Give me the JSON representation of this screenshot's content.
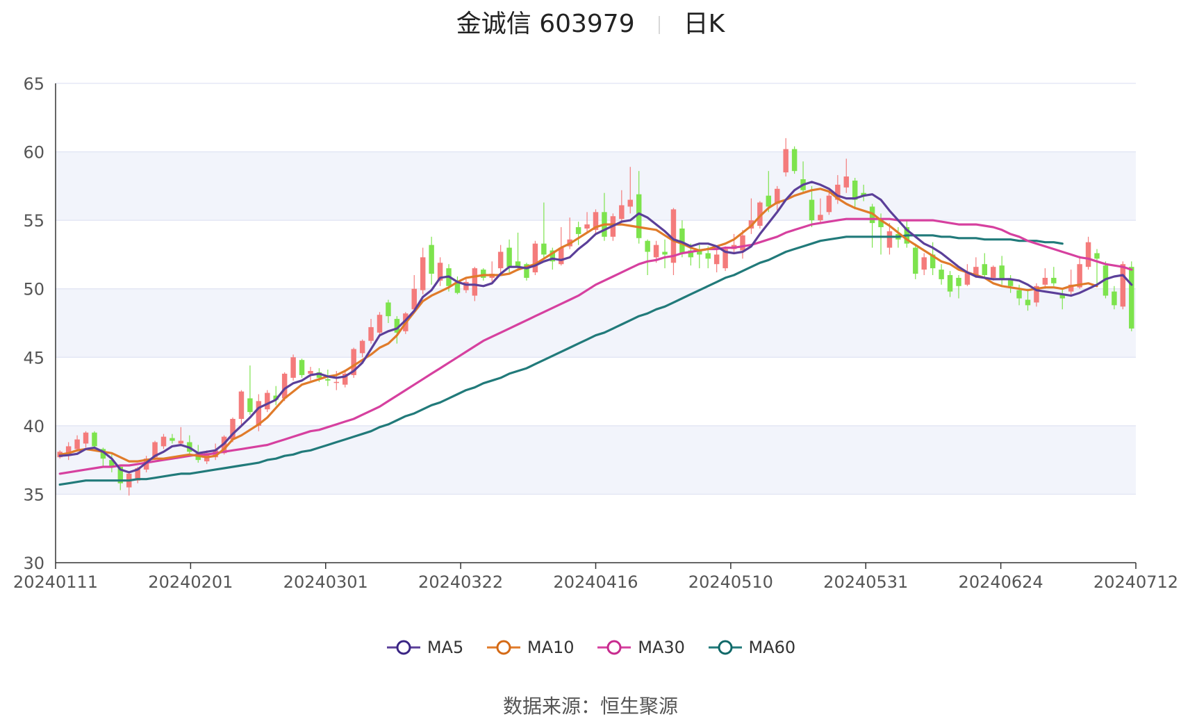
{
  "header": {
    "name": "金诚信 603979",
    "period": "日K"
  },
  "source": {
    "label": "数据来源：",
    "value": "恒生聚源"
  },
  "legend": [
    {
      "name": "MA5",
      "color": "#5b3f99"
    },
    {
      "name": "MA10",
      "color": "#e07b2a"
    },
    {
      "name": "MA30",
      "color": "#d6409f"
    },
    {
      "name": "MA60",
      "color": "#217a7a"
    }
  ],
  "colors": {
    "up": "#f47b7b",
    "down": "#7de34d",
    "band": "#f2f4fb",
    "grid": "#d9def0"
  },
  "chart_data": {
    "type": "candlestick",
    "ylim": [
      30,
      65
    ],
    "yticks": [
      30,
      35,
      40,
      45,
      50,
      55,
      60,
      65
    ],
    "xticks": [
      "20240111",
      "20240201",
      "20240301",
      "20240322",
      "20240416",
      "20240510",
      "20240531",
      "20240624",
      "20240712"
    ],
    "grid": true,
    "legend_position": "bottom",
    "candles": [
      {
        "o": 37.7,
        "c": 38.1,
        "h": 38.2,
        "l": 37.6
      },
      {
        "o": 37.8,
        "c": 38.5,
        "h": 38.8,
        "l": 37.5
      },
      {
        "o": 38.3,
        "c": 39.0,
        "h": 39.3,
        "l": 38.1
      },
      {
        "o": 38.7,
        "c": 39.5,
        "h": 39.6,
        "l": 38.4
      },
      {
        "o": 39.5,
        "c": 38.5,
        "h": 39.6,
        "l": 38.2
      },
      {
        "o": 38.3,
        "c": 37.6,
        "h": 38.4,
        "l": 37.0
      },
      {
        "o": 37.5,
        "c": 37.0,
        "h": 37.9,
        "l": 36.6
      },
      {
        "o": 37.0,
        "c": 35.8,
        "h": 37.1,
        "l": 35.3
      },
      {
        "o": 35.5,
        "c": 36.5,
        "h": 36.6,
        "l": 34.9
      },
      {
        "o": 36.0,
        "c": 36.9,
        "h": 37.0,
        "l": 35.8
      },
      {
        "o": 36.8,
        "c": 37.6,
        "h": 37.8,
        "l": 36.6
      },
      {
        "o": 37.7,
        "c": 38.8,
        "h": 38.9,
        "l": 37.5
      },
      {
        "o": 38.5,
        "c": 39.2,
        "h": 39.4,
        "l": 38.3
      },
      {
        "o": 39.1,
        "c": 38.9,
        "h": 39.4,
        "l": 38.7
      },
      {
        "o": 38.7,
        "c": 38.9,
        "h": 39.9,
        "l": 38.5
      },
      {
        "o": 38.8,
        "c": 38.1,
        "h": 39.3,
        "l": 37.9
      },
      {
        "o": 38.0,
        "c": 37.5,
        "h": 38.6,
        "l": 37.3
      },
      {
        "o": 37.4,
        "c": 38.0,
        "h": 38.2,
        "l": 37.2
      },
      {
        "o": 37.7,
        "c": 38.2,
        "h": 38.7,
        "l": 37.5
      },
      {
        "o": 38.0,
        "c": 39.2,
        "h": 39.3,
        "l": 37.9
      },
      {
        "o": 39.0,
        "c": 40.5,
        "h": 40.6,
        "l": 38.8
      },
      {
        "o": 40.5,
        "c": 42.5,
        "h": 42.6,
        "l": 40.0
      },
      {
        "o": 42.0,
        "c": 41.0,
        "h": 44.4,
        "l": 40.8
      },
      {
        "o": 40.0,
        "c": 41.8,
        "h": 42.3,
        "l": 39.6
      },
      {
        "o": 41.2,
        "c": 42.4,
        "h": 42.6,
        "l": 41.0
      },
      {
        "o": 42.2,
        "c": 41.9,
        "h": 42.9,
        "l": 41.5
      },
      {
        "o": 42.0,
        "c": 43.8,
        "h": 43.9,
        "l": 41.8
      },
      {
        "o": 43.5,
        "c": 45.0,
        "h": 45.2,
        "l": 43.3
      },
      {
        "o": 44.8,
        "c": 43.7,
        "h": 44.9,
        "l": 43.5
      },
      {
        "o": 43.8,
        "c": 44.0,
        "h": 44.3,
        "l": 43.3
      },
      {
        "o": 43.9,
        "c": 43.5,
        "h": 44.2,
        "l": 43.2
      },
      {
        "o": 43.4,
        "c": 43.3,
        "h": 44.1,
        "l": 42.9
      },
      {
        "o": 43.2,
        "c": 43.2,
        "h": 44.0,
        "l": 42.6
      },
      {
        "o": 43.0,
        "c": 43.8,
        "h": 44.1,
        "l": 42.8
      },
      {
        "o": 43.7,
        "c": 45.6,
        "h": 45.7,
        "l": 43.5
      },
      {
        "o": 45.3,
        "c": 46.2,
        "h": 46.3,
        "l": 45.0
      },
      {
        "o": 46.2,
        "c": 47.2,
        "h": 47.8,
        "l": 46.0
      },
      {
        "o": 46.8,
        "c": 48.1,
        "h": 48.3,
        "l": 46.6
      },
      {
        "o": 49.0,
        "c": 48.0,
        "h": 49.2,
        "l": 47.5
      },
      {
        "o": 47.8,
        "c": 46.8,
        "h": 48.0,
        "l": 46.0
      },
      {
        "o": 46.9,
        "c": 48.2,
        "h": 48.3,
        "l": 46.7
      },
      {
        "o": 48.5,
        "c": 50.0,
        "h": 51.0,
        "l": 48.2
      },
      {
        "o": 49.9,
        "c": 52.3,
        "h": 53.0,
        "l": 49.6
      },
      {
        "o": 53.2,
        "c": 51.1,
        "h": 53.8,
        "l": 50.3
      },
      {
        "o": 50.6,
        "c": 51.9,
        "h": 52.3,
        "l": 50.2
      },
      {
        "o": 51.5,
        "c": 50.2,
        "h": 51.8,
        "l": 49.8
      },
      {
        "o": 50.5,
        "c": 49.7,
        "h": 50.9,
        "l": 49.6
      },
      {
        "o": 49.9,
        "c": 50.5,
        "h": 50.8,
        "l": 49.7
      },
      {
        "o": 49.5,
        "c": 51.5,
        "h": 51.6,
        "l": 49.1
      },
      {
        "o": 51.4,
        "c": 50.8,
        "h": 51.5,
        "l": 50.6
      },
      {
        "o": 50.8,
        "c": 51.1,
        "h": 52.0,
        "l": 50.5
      },
      {
        "o": 51.5,
        "c": 52.7,
        "h": 53.2,
        "l": 51.0
      },
      {
        "o": 53.0,
        "c": 51.6,
        "h": 53.6,
        "l": 51.2
      },
      {
        "o": 52.0,
        "c": 51.6,
        "h": 54.1,
        "l": 51.3
      },
      {
        "o": 51.8,
        "c": 50.8,
        "h": 51.9,
        "l": 50.6
      },
      {
        "o": 51.2,
        "c": 53.3,
        "h": 53.5,
        "l": 51.0
      },
      {
        "o": 53.3,
        "c": 52.5,
        "h": 56.3,
        "l": 52.2
      },
      {
        "o": 52.8,
        "c": 52.0,
        "h": 53.0,
        "l": 51.4
      },
      {
        "o": 51.8,
        "c": 53.0,
        "h": 54.5,
        "l": 51.7
      },
      {
        "o": 53.1,
        "c": 53.6,
        "h": 55.2,
        "l": 52.9
      },
      {
        "o": 54.5,
        "c": 54.0,
        "h": 54.9,
        "l": 53.2
      },
      {
        "o": 54.4,
        "c": 54.7,
        "h": 55.6,
        "l": 54.1
      },
      {
        "o": 54.3,
        "c": 55.6,
        "h": 55.8,
        "l": 54.0
      },
      {
        "o": 55.6,
        "c": 53.8,
        "h": 57.0,
        "l": 53.5
      },
      {
        "o": 53.8,
        "c": 55.3,
        "h": 55.5,
        "l": 53.5
      },
      {
        "o": 55.1,
        "c": 56.1,
        "h": 57.2,
        "l": 54.8
      },
      {
        "o": 56.0,
        "c": 56.5,
        "h": 58.9,
        "l": 55.5
      },
      {
        "o": 56.9,
        "c": 53.7,
        "h": 58.6,
        "l": 53.3
      },
      {
        "o": 53.5,
        "c": 52.7,
        "h": 53.6,
        "l": 51.0
      },
      {
        "o": 52.3,
        "c": 53.2,
        "h": 53.5,
        "l": 51.9
      },
      {
        "o": 52.7,
        "c": 52.5,
        "h": 53.6,
        "l": 51.5
      },
      {
        "o": 51.9,
        "c": 55.8,
        "h": 55.9,
        "l": 51.0
      },
      {
        "o": 54.4,
        "c": 52.6,
        "h": 55.0,
        "l": 52.3
      },
      {
        "o": 52.8,
        "c": 52.3,
        "h": 53.3,
        "l": 51.7
      },
      {
        "o": 52.8,
        "c": 52.5,
        "h": 53.2,
        "l": 51.5
      },
      {
        "o": 52.6,
        "c": 52.2,
        "h": 53.1,
        "l": 51.5
      },
      {
        "o": 51.8,
        "c": 52.5,
        "h": 53.0,
        "l": 51.2
      },
      {
        "o": 51.5,
        "c": 52.9,
        "h": 53.1,
        "l": 51.3
      },
      {
        "o": 52.9,
        "c": 53.2,
        "h": 54.0,
        "l": 52.6
      },
      {
        "o": 52.8,
        "c": 53.9,
        "h": 54.3,
        "l": 52.2
      },
      {
        "o": 54.4,
        "c": 55.0,
        "h": 56.6,
        "l": 54.0
      },
      {
        "o": 54.6,
        "c": 56.3,
        "h": 56.4,
        "l": 54.4
      },
      {
        "o": 56.8,
        "c": 56.0,
        "h": 58.6,
        "l": 55.6
      },
      {
        "o": 56.2,
        "c": 57.3,
        "h": 57.5,
        "l": 55.6
      },
      {
        "o": 58.5,
        "c": 60.2,
        "h": 61.0,
        "l": 58.2
      },
      {
        "o": 60.2,
        "c": 58.6,
        "h": 60.4,
        "l": 58.4
      },
      {
        "o": 58.0,
        "c": 57.2,
        "h": 59.3,
        "l": 57.0
      },
      {
        "o": 56.5,
        "c": 55.0,
        "h": 57.5,
        "l": 54.5
      },
      {
        "o": 55.0,
        "c": 55.4,
        "h": 56.6,
        "l": 54.8
      },
      {
        "o": 55.6,
        "c": 56.8,
        "h": 57.1,
        "l": 55.4
      },
      {
        "o": 56.5,
        "c": 57.6,
        "h": 58.3,
        "l": 56.2
      },
      {
        "o": 57.4,
        "c": 58.2,
        "h": 59.5,
        "l": 57.0
      },
      {
        "o": 57.9,
        "c": 56.5,
        "h": 58.1,
        "l": 55.8
      },
      {
        "o": 57.0,
        "c": 56.8,
        "h": 57.6,
        "l": 56.4
      },
      {
        "o": 56.0,
        "c": 54.8,
        "h": 56.2,
        "l": 53.0
      },
      {
        "o": 55.1,
        "c": 54.5,
        "h": 55.5,
        "l": 52.5
      },
      {
        "o": 53.0,
        "c": 54.2,
        "h": 54.8,
        "l": 52.5
      },
      {
        "o": 54.0,
        "c": 53.6,
        "h": 54.5,
        "l": 53.0
      },
      {
        "o": 54.5,
        "c": 53.3,
        "h": 55.0,
        "l": 53.0
      },
      {
        "o": 53.0,
        "c": 51.1,
        "h": 53.3,
        "l": 50.7
      },
      {
        "o": 51.4,
        "c": 52.3,
        "h": 52.6,
        "l": 51.0
      },
      {
        "o": 52.5,
        "c": 51.5,
        "h": 53.4,
        "l": 51.0
      },
      {
        "o": 51.4,
        "c": 50.7,
        "h": 51.8,
        "l": 50.3
      },
      {
        "o": 51.0,
        "c": 49.8,
        "h": 51.3,
        "l": 49.4
      },
      {
        "o": 50.8,
        "c": 50.2,
        "h": 51.0,
        "l": 49.3
      },
      {
        "o": 50.3,
        "c": 51.2,
        "h": 51.8,
        "l": 50.2
      },
      {
        "o": 51.0,
        "c": 51.6,
        "h": 52.3,
        "l": 50.8
      },
      {
        "o": 51.8,
        "c": 51.0,
        "h": 52.6,
        "l": 50.8
      },
      {
        "o": 50.8,
        "c": 51.6,
        "h": 51.7,
        "l": 50.6
      },
      {
        "o": 51.7,
        "c": 50.7,
        "h": 52.4,
        "l": 50.3
      },
      {
        "o": 50.7,
        "c": 50.2,
        "h": 51.0,
        "l": 49.7
      },
      {
        "o": 49.9,
        "c": 49.3,
        "h": 50.3,
        "l": 48.8
      },
      {
        "o": 49.2,
        "c": 48.8,
        "h": 50.0,
        "l": 48.4
      },
      {
        "o": 49.0,
        "c": 50.2,
        "h": 50.4,
        "l": 48.7
      },
      {
        "o": 50.3,
        "c": 50.8,
        "h": 51.5,
        "l": 50.0
      },
      {
        "o": 50.8,
        "c": 50.4,
        "h": 51.6,
        "l": 50.2
      },
      {
        "o": 49.6,
        "c": 49.3,
        "h": 50.0,
        "l": 48.5
      },
      {
        "o": 49.8,
        "c": 50.3,
        "h": 51.4,
        "l": 49.5
      },
      {
        "o": 50.1,
        "c": 51.8,
        "h": 52.4,
        "l": 50.0
      },
      {
        "o": 51.6,
        "c": 53.4,
        "h": 53.8,
        "l": 51.4
      },
      {
        "o": 52.6,
        "c": 52.2,
        "h": 52.9,
        "l": 50.3
      },
      {
        "o": 51.7,
        "c": 49.5,
        "h": 52.0,
        "l": 49.3
      },
      {
        "o": 49.8,
        "c": 48.8,
        "h": 50.2,
        "l": 48.5
      },
      {
        "o": 48.7,
        "c": 51.8,
        "h": 52.0,
        "l": 48.5
      },
      {
        "o": 51.6,
        "c": 47.1,
        "h": 52.0,
        "l": 46.9
      }
    ],
    "ma5": [
      37.8,
      37.85,
      37.95,
      38.3,
      38.4,
      38.1,
      37.6,
      36.8,
      36.6,
      36.8,
      37.3,
      37.8,
      38.1,
      38.5,
      38.6,
      38.4,
      38.0,
      38.1,
      38.2,
      38.7,
      39.4,
      40.0,
      40.6,
      41.3,
      41.6,
      41.9,
      42.7,
      43.1,
      43.3,
      43.7,
      43.8,
      43.6,
      43.5,
      43.6,
      44.0,
      44.6,
      45.6,
      46.6,
      46.9,
      47.1,
      47.7,
      48.4,
      49.4,
      49.9,
      50.8,
      50.9,
      50.5,
      50.3,
      50.3,
      50.2,
      50.4,
      51.1,
      51.6,
      51.6,
      51.5,
      51.7,
      52.0,
      52.2,
      52.1,
      52.3,
      52.9,
      53.4,
      54.0,
      54.3,
      54.6,
      54.9,
      55.0,
      55.5,
      55.2,
      54.7,
      54.2,
      53.6,
      53.4,
      53.1,
      53.3,
      53.3,
      53.1,
      52.7,
      52.6,
      52.7,
      53.1,
      54.0,
      54.8,
      55.6,
      56.5,
      57.2,
      57.6,
      57.8,
      57.6,
      57.3,
      56.8,
      56.6,
      56.6,
      56.8,
      56.9,
      56.5,
      55.7,
      55.0,
      54.3,
      53.8,
      53.3,
      53.0,
      52.6,
      52.1,
      51.6,
      51.2,
      50.9,
      50.8,
      50.7,
      50.7,
      50.7,
      50.6,
      50.3,
      49.9,
      49.8,
      49.7,
      49.6,
      49.5,
      49.7,
      50.0,
      50.3,
      50.7,
      50.9,
      51.0,
      50.3
    ],
    "ma10": [
      37.9,
      38.0,
      38.2,
      38.3,
      38.2,
      38.1,
      38.0,
      37.7,
      37.4,
      37.4,
      37.5,
      37.6,
      37.6,
      37.7,
      37.8,
      37.9,
      37.8,
      37.7,
      37.8,
      38.3,
      39.0,
      39.3,
      39.7,
      40.1,
      40.6,
      41.3,
      42.0,
      42.5,
      43.0,
      43.2,
      43.4,
      43.6,
      43.7,
      44.0,
      44.4,
      44.8,
      45.2,
      45.7,
      46.0,
      46.6,
      47.5,
      48.3,
      49.1,
      49.5,
      49.8,
      50.1,
      50.5,
      50.8,
      50.9,
      51.0,
      51.0,
      51.0,
      51.1,
      51.4,
      51.6,
      51.8,
      52.2,
      52.6,
      53.0,
      53.3,
      53.7,
      54.1,
      54.5,
      54.7,
      54.7,
      54.7,
      54.6,
      54.5,
      54.4,
      54.3,
      53.9,
      53.5,
      53.3,
      53.0,
      52.8,
      52.9,
      53.1,
      53.3,
      53.6,
      54.1,
      54.6,
      55.3,
      55.9,
      56.3,
      56.5,
      56.8,
      57.0,
      57.2,
      57.3,
      57.1,
      56.6,
      56.2,
      55.9,
      55.7,
      55.5,
      55.0,
      54.6,
      54.1,
      53.6,
      53.2,
      52.8,
      52.4,
      52.0,
      51.8,
      51.4,
      51.2,
      51.0,
      50.8,
      50.4,
      50.2,
      50.1,
      50.0,
      49.9,
      50.0,
      50.1,
      50.1,
      50.0,
      50.2,
      50.3,
      50.4,
      50.2
    ],
    "ma30": [
      36.5,
      36.6,
      36.7,
      36.8,
      36.9,
      37.0,
      37.0,
      37.1,
      37.1,
      37.2,
      37.3,
      37.4,
      37.5,
      37.6,
      37.7,
      37.8,
      37.9,
      37.9,
      38.0,
      38.1,
      38.2,
      38.3,
      38.4,
      38.5,
      38.6,
      38.8,
      39.0,
      39.2,
      39.4,
      39.6,
      39.7,
      39.9,
      40.1,
      40.3,
      40.5,
      40.8,
      41.1,
      41.4,
      41.8,
      42.2,
      42.6,
      43.0,
      43.4,
      43.8,
      44.2,
      44.6,
      45.0,
      45.4,
      45.8,
      46.2,
      46.5,
      46.8,
      47.1,
      47.4,
      47.7,
      48.0,
      48.3,
      48.6,
      48.9,
      49.2,
      49.5,
      49.9,
      50.3,
      50.6,
      50.9,
      51.2,
      51.5,
      51.8,
      52.0,
      52.1,
      52.3,
      52.4,
      52.6,
      52.7,
      52.8,
      52.9,
      52.9,
      53.0,
      53.0,
      53.1,
      53.2,
      53.4,
      53.6,
      53.8,
      54.1,
      54.3,
      54.5,
      54.7,
      54.8,
      54.9,
      55.0,
      55.1,
      55.1,
      55.1,
      55.1,
      55.1,
      55.1,
      55.0,
      55.0,
      55.0,
      55.0,
      55.0,
      54.9,
      54.8,
      54.7,
      54.7,
      54.7,
      54.6,
      54.5,
      54.3,
      54.0,
      53.8,
      53.5,
      53.3,
      53.1,
      52.9,
      52.7,
      52.5,
      52.3,
      52.2,
      52.0,
      51.8,
      51.7,
      51.6,
      51.4
    ],
    "ma60": [
      35.7,
      35.8,
      35.9,
      36.0,
      36.0,
      36.0,
      36.0,
      36.0,
      36.0,
      36.1,
      36.1,
      36.2,
      36.3,
      36.4,
      36.5,
      36.5,
      36.6,
      36.7,
      36.8,
      36.9,
      37.0,
      37.1,
      37.2,
      37.3,
      37.5,
      37.6,
      37.8,
      37.9,
      38.1,
      38.2,
      38.4,
      38.6,
      38.8,
      39.0,
      39.2,
      39.4,
      39.6,
      39.9,
      40.1,
      40.4,
      40.7,
      40.9,
      41.2,
      41.5,
      41.7,
      42.0,
      42.3,
      42.6,
      42.8,
      43.1,
      43.3,
      43.5,
      43.8,
      44.0,
      44.2,
      44.5,
      44.8,
      45.1,
      45.4,
      45.7,
      46.0,
      46.3,
      46.6,
      46.8,
      47.1,
      47.4,
      47.7,
      48.0,
      48.2,
      48.5,
      48.7,
      49.0,
      49.3,
      49.6,
      49.9,
      50.2,
      50.5,
      50.8,
      51.0,
      51.3,
      51.6,
      51.9,
      52.1,
      52.4,
      52.7,
      52.9,
      53.1,
      53.3,
      53.5,
      53.6,
      53.7,
      53.8,
      53.8,
      53.8,
      53.8,
      53.8,
      53.8,
      53.8,
      53.9,
      53.9,
      53.9,
      53.9,
      53.8,
      53.8,
      53.7,
      53.7,
      53.7,
      53.6,
      53.6,
      53.6,
      53.6,
      53.5,
      53.5,
      53.5,
      53.4,
      53.4,
      53.3
    ]
  }
}
